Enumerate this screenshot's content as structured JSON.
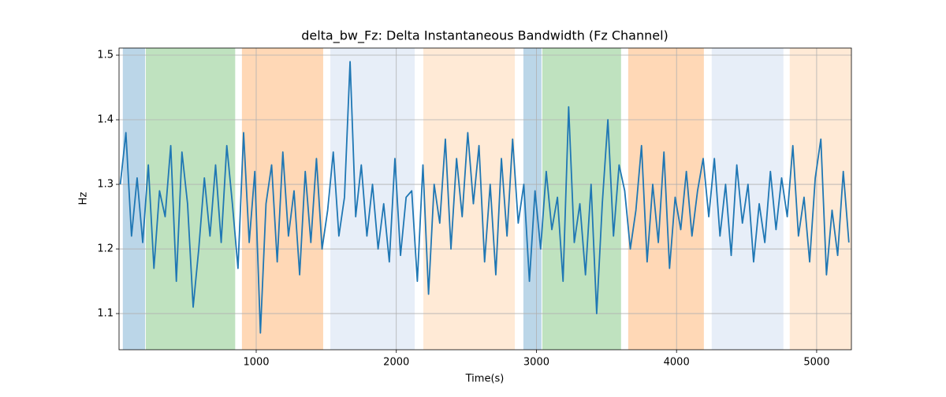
{
  "chart_data": {
    "type": "line",
    "title": "delta_bw_Fz: Delta Instantaneous Bandwidth (Fz Channel)",
    "x_label": "Time(s)",
    "y_label": "Hz",
    "xlim": [
      21,
      5248
    ],
    "ylim": [
      1.044,
      1.511
    ],
    "xticks": [
      1000,
      2000,
      3000,
      4000,
      5000
    ],
    "yticks": [
      1.1,
      1.2,
      1.3,
      1.4,
      1.5
    ],
    "grid": true,
    "span_opacity": 0.3,
    "spans": [
      {
        "start": 48,
        "end": 207,
        "color": "#1f77b4"
      },
      {
        "start": 212,
        "end": 850,
        "color": "#2ca02c"
      },
      {
        "start": 898,
        "end": 1478,
        "color": "#ff7f0e"
      },
      {
        "start": 1529,
        "end": 2131,
        "color": "#aec7e8"
      },
      {
        "start": 2193,
        "end": 2846,
        "color": "#ffbb78"
      },
      {
        "start": 2907,
        "end": 3036,
        "color": "#1f77b4"
      },
      {
        "start": 3042,
        "end": 3604,
        "color": "#2ca02c"
      },
      {
        "start": 3655,
        "end": 4195,
        "color": "#ff7f0e"
      },
      {
        "start": 4251,
        "end": 4763,
        "color": "#aec7e8"
      },
      {
        "start": 4808,
        "end": 5248,
        "color": "#ffbb78"
      }
    ],
    "x": [
      30,
      70,
      110,
      150,
      190,
      230,
      270,
      310,
      350,
      390,
      430,
      470,
      510,
      550,
      590,
      630,
      670,
      710,
      750,
      790,
      830,
      870,
      910,
      950,
      990,
      1030,
      1070,
      1110,
      1150,
      1190,
      1230,
      1270,
      1310,
      1350,
      1390,
      1430,
      1470,
      1510,
      1550,
      1590,
      1630,
      1670,
      1710,
      1750,
      1790,
      1830,
      1870,
      1910,
      1950,
      1990,
      2030,
      2070,
      2110,
      2150,
      2190,
      2230,
      2270,
      2310,
      2350,
      2390,
      2430,
      2470,
      2510,
      2550,
      2590,
      2630,
      2670,
      2710,
      2750,
      2790,
      2830,
      2870,
      2910,
      2950,
      2990,
      3030,
      3070,
      3110,
      3150,
      3190,
      3230,
      3270,
      3310,
      3350,
      3390,
      3430,
      3470,
      3510,
      3550,
      3590,
      3630,
      3670,
      3710,
      3750,
      3790,
      3830,
      3870,
      3910,
      3950,
      3990,
      4030,
      4070,
      4110,
      4150,
      4190,
      4230,
      4270,
      4310,
      4350,
      4390,
      4430,
      4470,
      4510,
      4550,
      4590,
      4630,
      4670,
      4710,
      4750,
      4790,
      4830,
      4870,
      4910,
      4950,
      4990,
      5030,
      5070,
      5110,
      5150,
      5190,
      5230
    ],
    "series": [
      {
        "name": "delta_bw_Fz",
        "color": "#1f77b4",
        "values": [
          1.3,
          1.38,
          1.22,
          1.31,
          1.21,
          1.33,
          1.17,
          1.29,
          1.25,
          1.36,
          1.15,
          1.35,
          1.27,
          1.11,
          1.2,
          1.31,
          1.22,
          1.33,
          1.21,
          1.36,
          1.27,
          1.17,
          1.38,
          1.21,
          1.32,
          1.07,
          1.27,
          1.33,
          1.18,
          1.35,
          1.22,
          1.29,
          1.16,
          1.32,
          1.21,
          1.34,
          1.2,
          1.26,
          1.35,
          1.22,
          1.28,
          1.49,
          1.25,
          1.33,
          1.22,
          1.3,
          1.2,
          1.27,
          1.18,
          1.34,
          1.19,
          1.28,
          1.29,
          1.15,
          1.33,
          1.13,
          1.3,
          1.24,
          1.37,
          1.2,
          1.34,
          1.25,
          1.38,
          1.27,
          1.36,
          1.18,
          1.3,
          1.16,
          1.34,
          1.22,
          1.37,
          1.24,
          1.3,
          1.15,
          1.29,
          1.2,
          1.32,
          1.23,
          1.28,
          1.15,
          1.42,
          1.21,
          1.27,
          1.16,
          1.3,
          1.1,
          1.27,
          1.4,
          1.22,
          1.33,
          1.29,
          1.2,
          1.26,
          1.36,
          1.18,
          1.3,
          1.21,
          1.35,
          1.17,
          1.28,
          1.23,
          1.32,
          1.22,
          1.29,
          1.34,
          1.25,
          1.34,
          1.22,
          1.3,
          1.19,
          1.33,
          1.24,
          1.3,
          1.18,
          1.27,
          1.21,
          1.32,
          1.23,
          1.31,
          1.25,
          1.36,
          1.22,
          1.28,
          1.18,
          1.31,
          1.37,
          1.16,
          1.26,
          1.19,
          1.32,
          1.21
        ]
      }
    ]
  }
}
